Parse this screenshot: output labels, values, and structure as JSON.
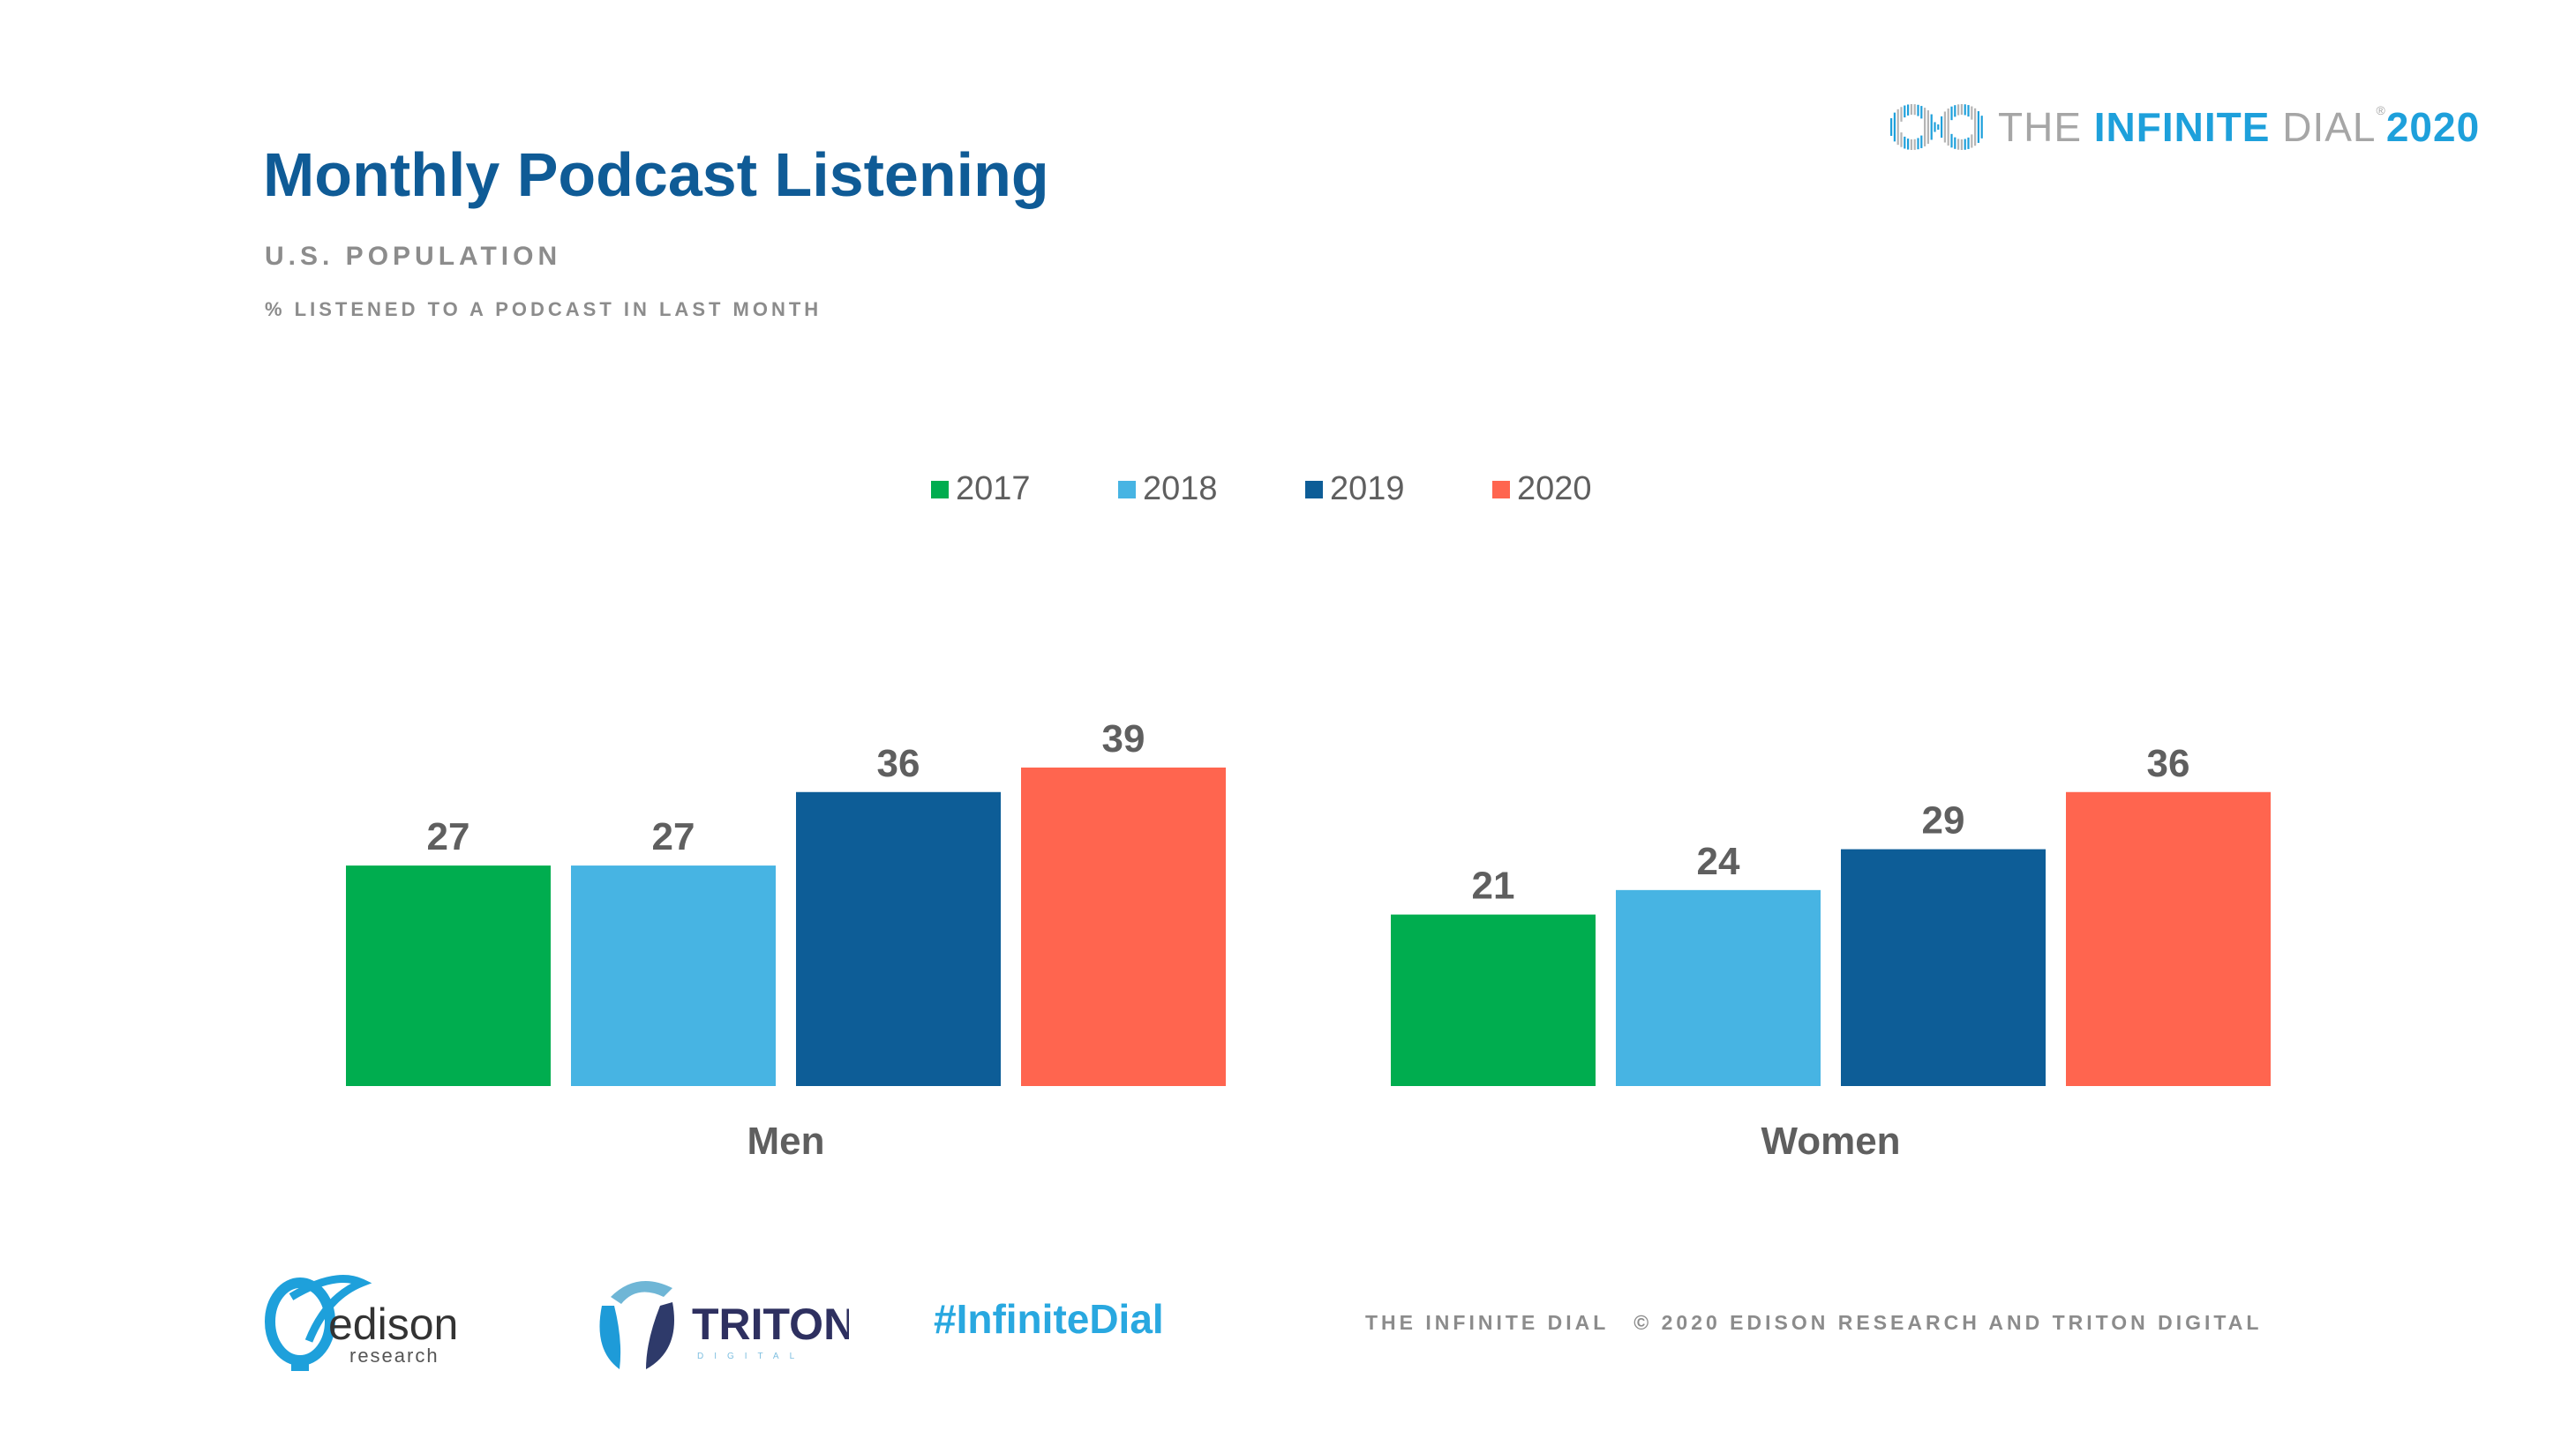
{
  "header": {
    "title": "Monthly Podcast Listening",
    "subtitle": "U.S. POPULATION",
    "description": "% LISTENED TO A PODCAST IN LAST MONTH"
  },
  "brand": {
    "icon": "infinity-dial-icon",
    "text_prefix": "THE ",
    "text_bold": "INFINITE",
    "text_suffix": " DIAL",
    "registered": "®",
    "year": "2020"
  },
  "colors": {
    "title": "#0f5b96",
    "2017": "#00ad4f",
    "2018": "#47b4e3",
    "2019": "#0d5d97",
    "2020": "#ff654f",
    "label": "#5f5f5f"
  },
  "chart_data": {
    "type": "bar",
    "title": "Monthly Podcast Listening",
    "subtitle": "U.S. POPULATION — % LISTENED TO A PODCAST IN LAST MONTH",
    "xlabel": "",
    "ylabel": "",
    "categories": [
      "Men",
      "Women"
    ],
    "series": [
      {
        "name": "2017",
        "color": "#00ad4f",
        "values": [
          27,
          21
        ]
      },
      {
        "name": "2018",
        "color": "#47b4e3",
        "values": [
          27,
          24
        ]
      },
      {
        "name": "2019",
        "color": "#0d5d97",
        "values": [
          36,
          29
        ]
      },
      {
        "name": "2020",
        "color": "#ff654f",
        "values": [
          39,
          36
        ]
      }
    ],
    "ylim": [
      0,
      39
    ],
    "grid": false,
    "legend": "top-center",
    "data_labels": true
  },
  "footer": {
    "edison_logo": {
      "name": "edison",
      "sub": "research"
    },
    "triton_logo": {
      "name": "TRITON",
      "sub": "DIGITAL"
    },
    "hashtag": "#InfiniteDial",
    "copyright_left": "THE INFINITE DIAL",
    "copyright_right": "© 2020 EDISON RESEARCH AND TRITON DIGITAL"
  }
}
